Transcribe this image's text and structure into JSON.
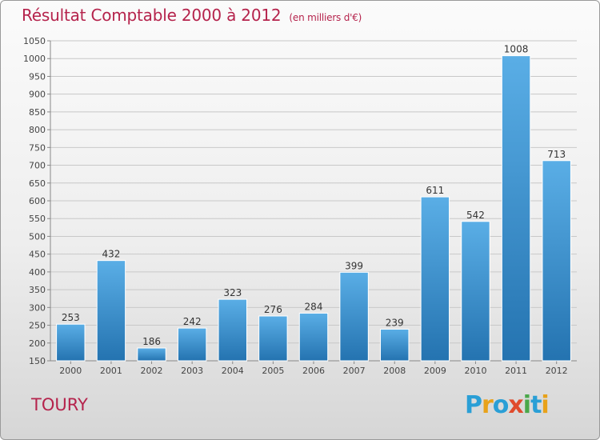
{
  "header": {
    "title": "Résultat Comptable 2000 à 2012",
    "subtitle": "(en milliers d'€)"
  },
  "footer": {
    "city": "TOURY",
    "brand": "Proxiti",
    "brand_letters": [
      "P",
      "r",
      "o",
      "x",
      "i",
      "t",
      "i"
    ]
  },
  "colors": {
    "title": "#b5234c",
    "bar_top": "#5aaee6",
    "bar_bottom": "#2473b0",
    "grid": "#c8c8c8"
  },
  "chart_data": {
    "type": "bar",
    "title": "Résultat Comptable 2000 à 2012",
    "subtitle": "(en milliers d'€)",
    "xlabel": "",
    "ylabel": "",
    "categories": [
      "2000",
      "2001",
      "2002",
      "2003",
      "2004",
      "2005",
      "2006",
      "2007",
      "2008",
      "2009",
      "2010",
      "2011",
      "2012"
    ],
    "values": [
      253,
      432,
      186,
      242,
      323,
      276,
      284,
      399,
      239,
      611,
      542,
      1008,
      713
    ],
    "data_labels": [
      "253",
      "432",
      "186",
      "242",
      "323",
      "276",
      "284",
      "399",
      "239",
      "611",
      "542",
      "1008",
      "713"
    ],
    "ylim": [
      150,
      1050
    ],
    "yticks": [
      150,
      200,
      250,
      300,
      350,
      400,
      450,
      500,
      550,
      600,
      650,
      700,
      750,
      800,
      850,
      900,
      950,
      1000,
      1050
    ],
    "ytick_labels": [
      "150",
      "200",
      "250",
      "300",
      "350",
      "400",
      "450",
      "500",
      "550",
      "600",
      "650",
      "700",
      "750",
      "800",
      "850",
      "900",
      "950",
      "1000",
      "1050"
    ],
    "grid": true,
    "legend": "none"
  }
}
